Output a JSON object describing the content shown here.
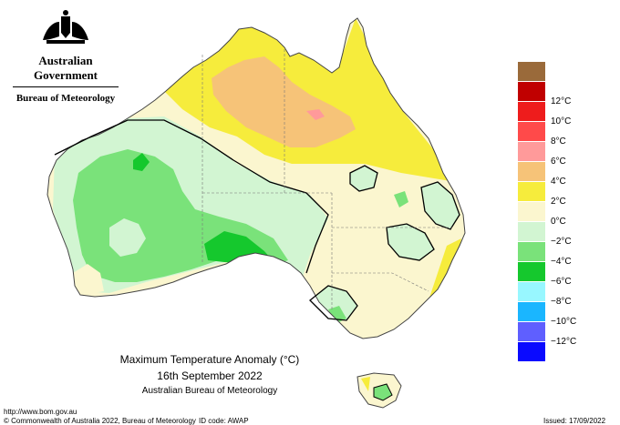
{
  "org": {
    "government": "Australian Government",
    "bureau": "Bureau of Meteorology",
    "crest_icon": "coat-of-arms-icon"
  },
  "title": {
    "line1": "Maximum Temperature Anomaly (°C)",
    "line2": "16th September 2022",
    "line3": "Australian Bureau of Meteorology"
  },
  "legend": [
    {
      "label": "",
      "color": "#9a6a3a"
    },
    {
      "label": "12°C",
      "color": "#c00000"
    },
    {
      "label": "10°C",
      "color": "#ee1c1c"
    },
    {
      "label": "8°C",
      "color": "#ff4a4a"
    },
    {
      "label": "6°C",
      "color": "#ff9a9a"
    },
    {
      "label": "4°C",
      "color": "#f6c378"
    },
    {
      "label": "2°C",
      "color": "#f6ec3c"
    },
    {
      "label": "0°C",
      "color": "#fbf6cf"
    },
    {
      "label": "−2°C",
      "color": "#d2f5d2"
    },
    {
      "label": "−4°C",
      "color": "#7ae27a"
    },
    {
      "label": "−6°C",
      "color": "#15c82d"
    },
    {
      "label": "−8°C",
      "color": "#98f7ff"
    },
    {
      "label": "−10°C",
      "color": "#1ab6ff"
    },
    {
      "label": "−12°C",
      "color": "#5f5fff"
    },
    {
      "label": "",
      "color": "#0a0aff"
    }
  ],
  "footer": {
    "url": "http://www.bom.gov.au",
    "copyright": "© Commonwealth of Australia 2022, Bureau of Meteorology",
    "id_code": "ID code: AWAP",
    "issued": "Issued: 17/09/2022"
  }
}
